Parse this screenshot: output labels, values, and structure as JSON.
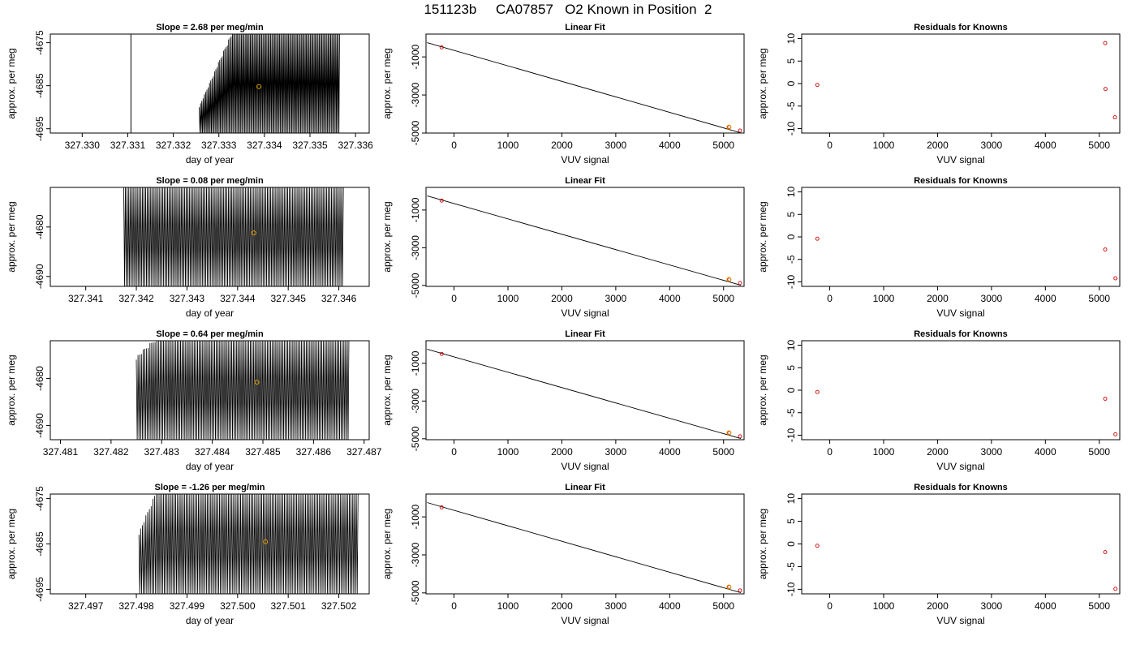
{
  "figure": {
    "title": "151123b     CA07857   O2 Known in Position  2"
  },
  "chart_data": [
    {
      "type": "line",
      "kind": "trace",
      "title": "Slope =  2.68  per meg/min",
      "xlabel": "day of year",
      "ylabel": "approx. per meg",
      "xlim": [
        327.3293,
        327.3363
      ],
      "ylim": [
        -4696,
        -4673
      ],
      "xticks": [
        327.33,
        327.331,
        327.332,
        327.333,
        327.334,
        327.335,
        327.336
      ],
      "xtick_labels": [
        "327.330",
        "327.331",
        "327.332",
        "327.333",
        "327.334",
        "327.335",
        "327.336"
      ],
      "yticks": [
        -4695,
        -4685,
        -4675
      ],
      "ytick_labels": [
        "-4695",
        "-4685",
        "-4675"
      ],
      "trace": {
        "spike_x": 327.33107,
        "start": 327.33257,
        "ramp_end": 327.3333,
        "end": 327.33565,
        "high": -4673,
        "low": -4696,
        "ramp_from": -4690,
        "cycles": 110
      },
      "marker": {
        "x": 327.33388,
        "y": -4685.2
      }
    },
    {
      "type": "scatter",
      "kind": "fit",
      "title": "Linear Fit",
      "xlabel": "VUV signal",
      "ylabel": "approx. per meg",
      "xlim": [
        -520,
        5380
      ],
      "ylim": [
        -5000,
        200
      ],
      "xticks": [
        0,
        1000,
        2000,
        3000,
        4000,
        5000
      ],
      "xtick_labels": [
        "0",
        "1000",
        "2000",
        "3000",
        "4000",
        "5000"
      ],
      "yticks": [
        -5000,
        -3000,
        -1000
      ],
      "ytick_labels": [
        "-5000",
        "-3000",
        "-1000"
      ],
      "line": {
        "x": [
          -500,
          5320
        ],
        "y": [
          -248,
          -4990
        ]
      },
      "points": [
        {
          "x": -230,
          "y": -500
        },
        {
          "x": 5105,
          "y": -4685
        },
        {
          "x": 5305,
          "y": -4870
        }
      ],
      "marker": {
        "x": 5100,
        "y": -4685
      }
    },
    {
      "type": "scatter",
      "kind": "resid",
      "title": "Residuals for Knowns",
      "xlabel": "VUV signal",
      "ylabel": "approx. per meg",
      "xlim": [
        -520,
        5380
      ],
      "ylim": [
        -11,
        11
      ],
      "xticks": [
        0,
        1000,
        2000,
        3000,
        4000,
        5000
      ],
      "xtick_labels": [
        "0",
        "1000",
        "2000",
        "3000",
        "4000",
        "5000"
      ],
      "yticks": [
        -10,
        -5,
        0,
        5,
        10
      ],
      "ytick_labels": [
        "-10",
        "-5",
        "0",
        "5",
        "10"
      ],
      "points": [
        {
          "x": -230,
          "y": -0.3
        },
        {
          "x": 5110,
          "y": 9.0
        },
        {
          "x": 5115,
          "y": -1.2
        },
        {
          "x": 5290,
          "y": -7.5
        }
      ]
    },
    {
      "type": "line",
      "kind": "trace",
      "title": "Slope =  0.08  per meg/min",
      "xlabel": "day of year",
      "ylabel": "approx. per meg",
      "xlim": [
        327.3403,
        327.3466
      ],
      "ylim": [
        -4692,
        -4672
      ],
      "xticks": [
        327.341,
        327.342,
        327.343,
        327.344,
        327.345,
        327.346
      ],
      "xtick_labels": [
        "327.341",
        "327.342",
        "327.343",
        "327.344",
        "327.345",
        "327.346"
      ],
      "yticks": [
        -4690,
        -4680
      ],
      "ytick_labels": [
        "-4690",
        "-4680"
      ],
      "trace": {
        "start": 327.34175,
        "ramp_end": 327.34175,
        "end": 327.34609,
        "high": -4672,
        "low": -4692,
        "ramp_from": -4690,
        "cycles": 130
      },
      "marker": {
        "x": 327.34432,
        "y": -4681.2
      }
    },
    {
      "type": "scatter",
      "kind": "fit",
      "title": "Linear Fit",
      "xlabel": "VUV signal",
      "ylabel": "approx. per meg",
      "xlim": [
        -520,
        5380
      ],
      "ylim": [
        -5050,
        200
      ],
      "xticks": [
        0,
        1000,
        2000,
        3000,
        4000,
        5000
      ],
      "xtick_labels": [
        "0",
        "1000",
        "2000",
        "3000",
        "4000",
        "5000"
      ],
      "yticks": [
        -5000,
        -3000,
        -1000
      ],
      "ytick_labels": [
        "-5000",
        "-3000",
        "-1000"
      ],
      "line": {
        "x": [
          -500,
          5320
        ],
        "y": [
          -248,
          -4990
        ]
      },
      "points": [
        {
          "x": -230,
          "y": -500
        },
        {
          "x": 5105,
          "y": -4685
        },
        {
          "x": 5305,
          "y": -4870
        }
      ],
      "marker": {
        "x": 5100,
        "y": -4685
      }
    },
    {
      "type": "scatter",
      "kind": "resid",
      "title": "Residuals for Knowns",
      "xlabel": "VUV signal",
      "ylabel": "approx. per meg",
      "xlim": [
        -520,
        5380
      ],
      "ylim": [
        -11,
        11
      ],
      "xticks": [
        0,
        1000,
        2000,
        3000,
        4000,
        5000
      ],
      "xtick_labels": [
        "0",
        "1000",
        "2000",
        "3000",
        "4000",
        "5000"
      ],
      "yticks": [
        -10,
        -5,
        0,
        5,
        10
      ],
      "ytick_labels": [
        "-10",
        "-5",
        "0",
        "5",
        "10"
      ],
      "points": [
        {
          "x": -230,
          "y": -0.4
        },
        {
          "x": 5110,
          "y": -2.8
        },
        {
          "x": 5300,
          "y": -9.2
        }
      ]
    },
    {
      "type": "line",
      "kind": "trace",
      "title": "Slope =  0.64  per meg/min",
      "xlabel": "day of year",
      "ylabel": "approx. per meg",
      "xlim": [
        327.4808,
        327.4871
      ],
      "ylim": [
        -4693,
        -4672
      ],
      "xticks": [
        327.481,
        327.482,
        327.483,
        327.484,
        327.485,
        327.486,
        327.487
      ],
      "xtick_labels": [
        "327.481",
        "327.482",
        "327.483",
        "327.484",
        "327.485",
        "327.486",
        "327.487"
      ],
      "yticks": [
        -4690,
        -4680
      ],
      "ytick_labels": [
        "-4690",
        "-4680"
      ],
      "trace": {
        "start": 327.4825,
        "ramp_end": 327.4829,
        "end": 327.4867,
        "high": -4672,
        "low": -4693,
        "ramp_from": -4676,
        "cycles": 125
      },
      "marker": {
        "x": 327.48488,
        "y": -4680.8
      }
    },
    {
      "type": "scatter",
      "kind": "fit",
      "title": "Linear Fit",
      "xlabel": "VUV signal",
      "ylabel": "approx. per meg",
      "xlim": [
        -520,
        5380
      ],
      "ylim": [
        -5050,
        200
      ],
      "xticks": [
        0,
        1000,
        2000,
        3000,
        4000,
        5000
      ],
      "xtick_labels": [
        "0",
        "1000",
        "2000",
        "3000",
        "4000",
        "5000"
      ],
      "yticks": [
        -5000,
        -3000,
        -1000
      ],
      "ytick_labels": [
        "-5000",
        "-3000",
        "-1000"
      ],
      "line": {
        "x": [
          -500,
          5320
        ],
        "y": [
          -248,
          -4990
        ]
      },
      "points": [
        {
          "x": -230,
          "y": -500
        },
        {
          "x": 5105,
          "y": -4685
        },
        {
          "x": 5305,
          "y": -4870
        }
      ],
      "marker": {
        "x": 5100,
        "y": -4685
      }
    },
    {
      "type": "scatter",
      "kind": "resid",
      "title": "Residuals for Knowns",
      "xlabel": "VUV signal",
      "ylabel": "approx. per meg",
      "xlim": [
        -520,
        5380
      ],
      "ylim": [
        -11,
        11
      ],
      "xticks": [
        0,
        1000,
        2000,
        3000,
        4000,
        5000
      ],
      "xtick_labels": [
        "0",
        "1000",
        "2000",
        "3000",
        "4000",
        "5000"
      ],
      "yticks": [
        -10,
        -5,
        0,
        5,
        10
      ],
      "ytick_labels": [
        "-10",
        "-5",
        "0",
        "5",
        "10"
      ],
      "points": [
        {
          "x": -230,
          "y": -0.4
        },
        {
          "x": 5110,
          "y": -1.9
        },
        {
          "x": 5300,
          "y": -9.8
        }
      ]
    },
    {
      "type": "line",
      "kind": "trace",
      "title": "Slope =  -1.26  per meg/min",
      "xlabel": "day of year",
      "ylabel": "approx. per meg",
      "xlim": [
        327.4963,
        327.5026
      ],
      "ylim": [
        -4696,
        -4674
      ],
      "xticks": [
        327.497,
        327.498,
        327.499,
        327.5,
        327.501,
        327.502
      ],
      "xtick_labels": [
        "327.497",
        "327.498",
        "327.499",
        "327.500",
        "327.501",
        "327.502"
      ],
      "yticks": [
        -4695,
        -4685,
        -4675
      ],
      "ytick_labels": [
        "-4695",
        "-4685",
        "-4675"
      ],
      "trace": {
        "start": 327.49805,
        "ramp_end": 327.4984,
        "end": 327.50238,
        "high": -4674,
        "low": -4696,
        "ramp_from": -4683,
        "cycles": 125
      },
      "marker": {
        "x": 327.50055,
        "y": -4684.5
      }
    },
    {
      "type": "scatter",
      "kind": "fit",
      "title": "Linear Fit",
      "xlabel": "VUV signal",
      "ylabel": "approx. per meg",
      "xlim": [
        -520,
        5380
      ],
      "ylim": [
        -5050,
        200
      ],
      "xticks": [
        0,
        1000,
        2000,
        3000,
        4000,
        5000
      ],
      "xtick_labels": [
        "0",
        "1000",
        "2000",
        "3000",
        "4000",
        "5000"
      ],
      "yticks": [
        -5000,
        -3000,
        -1000
      ],
      "ytick_labels": [
        "-5000",
        "-3000",
        "-1000"
      ],
      "line": {
        "x": [
          -500,
          5320
        ],
        "y": [
          -248,
          -4990
        ]
      },
      "points": [
        {
          "x": -230,
          "y": -500
        },
        {
          "x": 5105,
          "y": -4685
        },
        {
          "x": 5305,
          "y": -4870
        }
      ],
      "marker": {
        "x": 5100,
        "y": -4685
      }
    },
    {
      "type": "scatter",
      "kind": "resid",
      "title": "Residuals for Knowns",
      "xlabel": "VUV signal",
      "ylabel": "approx. per meg",
      "xlim": [
        -520,
        5380
      ],
      "ylim": [
        -11,
        11
      ],
      "xticks": [
        0,
        1000,
        2000,
        3000,
        4000,
        5000
      ],
      "xtick_labels": [
        "0",
        "1000",
        "2000",
        "3000",
        "4000",
        "5000"
      ],
      "yticks": [
        -10,
        -5,
        0,
        5,
        10
      ],
      "ytick_labels": [
        "-10",
        "-5",
        "0",
        "5",
        "10"
      ],
      "points": [
        {
          "x": -230,
          "y": -0.4
        },
        {
          "x": 5110,
          "y": -1.8
        },
        {
          "x": 5300,
          "y": -9.9
        }
      ]
    }
  ],
  "colors": {
    "axes": "#000000",
    "trace": "#000000",
    "marker": "#e69f00",
    "points": "#cc0000"
  }
}
